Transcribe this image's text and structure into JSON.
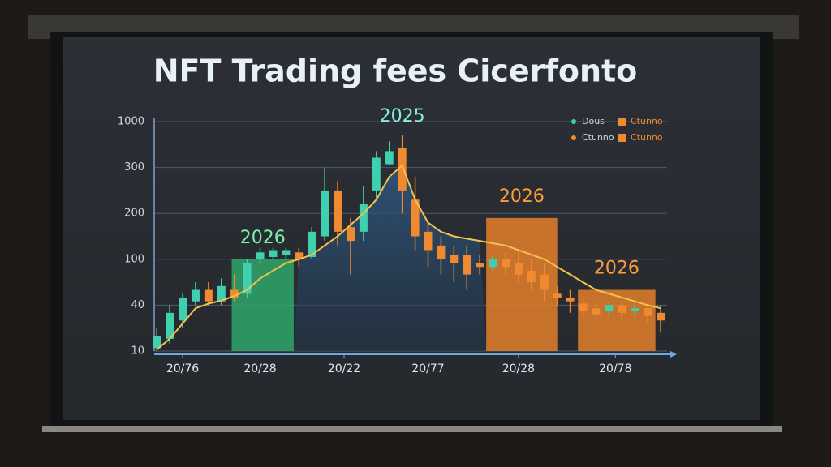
{
  "chart_data": {
    "type": "candlestick",
    "title": "NFT Trading fees Cicerfonto",
    "scale": "piecewise",
    "ylim": [
      10,
      1000
    ],
    "yticks": [
      10,
      40,
      100,
      200,
      300,
      1000
    ],
    "xlim": [
      -0.2,
      39.5
    ],
    "xticks": [
      {
        "value": 2,
        "label": "20/76"
      },
      {
        "value": 8,
        "label": "20/28"
      },
      {
        "value": 14.5,
        "label": "20/22"
      },
      {
        "value": 21,
        "label": "20/77"
      },
      {
        "value": 28,
        "label": "20/28"
      },
      {
        "value": 35.5,
        "label": "20/78"
      }
    ],
    "grid": true,
    "legend": "top-right",
    "series": [
      {
        "name": "Dous",
        "color": "#3fd0b0"
      },
      {
        "name": "Ctunno",
        "color": "#f08a30"
      }
    ],
    "x": [
      0,
      1,
      2,
      3,
      4,
      5,
      6,
      7,
      8,
      9,
      10,
      11,
      12,
      13,
      14,
      15,
      16,
      17,
      18,
      19,
      20,
      21,
      22,
      23,
      24,
      25,
      26,
      27,
      28,
      29,
      30,
      31,
      32,
      33,
      34,
      35,
      36,
      37,
      38,
      39
    ],
    "open": [
      12,
      18,
      30,
      45,
      60,
      45,
      60,
      55,
      100,
      105,
      110,
      115,
      105,
      150,
      250,
      170,
      160,
      250,
      350,
      600,
      230,
      160,
      130,
      110,
      110,
      95,
      90,
      100,
      95,
      85,
      80,
      55,
      50,
      42,
      38,
      36,
      40,
      36,
      38,
      35
    ],
    "close": [
      20,
      35,
      50,
      60,
      45,
      65,
      50,
      95,
      115,
      120,
      120,
      100,
      160,
      250,
      160,
      140,
      220,
      450,
      550,
      250,
      150,
      120,
      100,
      95,
      80,
      90,
      100,
      90,
      80,
      70,
      60,
      50,
      45,
      36,
      34,
      40,
      35,
      38,
      33,
      30
    ],
    "high": [
      25,
      40,
      55,
      70,
      70,
      75,
      80,
      100,
      125,
      125,
      125,
      125,
      170,
      300,
      270,
      190,
      260,
      550,
      700,
      800,
      280,
      180,
      150,
      130,
      130,
      110,
      110,
      115,
      120,
      100,
      95,
      65,
      60,
      48,
      44,
      45,
      46,
      44,
      42,
      40
    ],
    "low": [
      10,
      15,
      25,
      40,
      40,
      40,
      45,
      50,
      95,
      100,
      100,
      90,
      100,
      140,
      130,
      80,
      140,
      230,
      330,
      200,
      120,
      90,
      80,
      70,
      60,
      80,
      85,
      80,
      70,
      60,
      45,
      40,
      35,
      32,
      30,
      32,
      30,
      32,
      28,
      22
    ],
    "trend": {
      "color": "#f2c14e",
      "values": [
        11,
        18,
        28,
        38,
        42,
        46,
        52,
        60,
        75,
        85,
        95,
        100,
        110,
        130,
        150,
        175,
        200,
        230,
        280,
        330,
        230,
        180,
        160,
        150,
        145,
        140,
        135,
        130,
        120,
        110,
        100,
        90,
        80,
        70,
        60,
        55,
        50,
        45,
        40,
        38
      ]
    },
    "peak_label": "2025",
    "highlights": [
      {
        "label": "2026",
        "from": 5.8,
        "to": 10.6,
        "value": 100,
        "color": "#2fae6e"
      },
      {
        "label": "2026",
        "from": 25.5,
        "to": 31,
        "value": 190,
        "color": "#f0852a"
      },
      {
        "label": "2026",
        "from": 32.6,
        "to": 38.6,
        "value": 60,
        "color": "#f0852a"
      }
    ]
  }
}
